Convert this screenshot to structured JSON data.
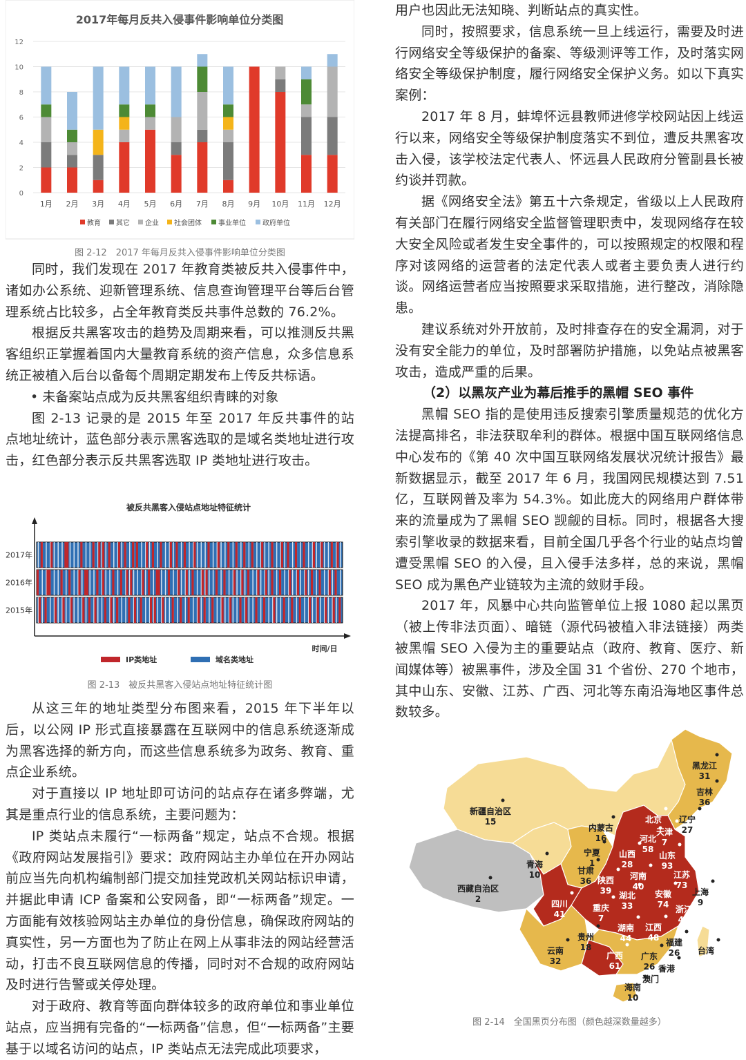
{
  "chart1": {
    "title": "2017年每月反共入侵事件影响单位分类图",
    "caption": "图 2-12　2017 年每月反共入侵事件影响单位分类图",
    "chart_data": {
      "type": "bar",
      "stacked": true,
      "title": "2017年每月反共入侵事件影响单位分类图",
      "categories": [
        "1月",
        "2月",
        "3月",
        "4月",
        "5月",
        "6月",
        "7月",
        "8月",
        "9月",
        "10月",
        "11月",
        "12月"
      ],
      "ylim": [
        0,
        12
      ],
      "yticks": [
        0,
        2,
        4,
        6,
        8,
        10,
        12
      ],
      "legend_position": "bottom",
      "series": [
        {
          "name": "教育",
          "color": "#e03a2a",
          "values": [
            2,
            2,
            1,
            4,
            5,
            3,
            4,
            1,
            10,
            8,
            3,
            3
          ]
        },
        {
          "name": "其它",
          "color": "#7b7b7b",
          "values": [
            2,
            1,
            2,
            0,
            0,
            1,
            1,
            3,
            0,
            1,
            3,
            3
          ]
        },
        {
          "name": "企业",
          "color": "#b3b3b3",
          "values": [
            2,
            1,
            0,
            1,
            1,
            2,
            3,
            1,
            0,
            1,
            1,
            4
          ]
        },
        {
          "name": "社会团体",
          "color": "#f4b41a",
          "values": [
            0,
            0,
            2,
            1,
            0,
            0,
            0,
            1,
            0,
            0,
            0,
            0
          ]
        },
        {
          "name": "事业单位",
          "color": "#4d8a35",
          "values": [
            1,
            1,
            0,
            1,
            1,
            0,
            2,
            1,
            0,
            0,
            2,
            0
          ]
        },
        {
          "name": "政府单位",
          "color": "#9bbfe0",
          "values": [
            3,
            3,
            5,
            3,
            3,
            4,
            1,
            3,
            0,
            0,
            1,
            1
          ]
        }
      ]
    }
  },
  "left_paragraphs_a": [
    "同时，我们发现在 2017 年教育类被反共入侵事件中，诸如办公系统、迎新管理系统、信息查询管理平台等后台管理系统占比较多，占全年教育类反共事件总数的 76.2%。",
    "根据反共黑客攻击的趋势及周期来看，可以推测反共黑客组织正掌握着国内大量教育系统的资产信息，众多信息系统正被植入后台以备每个周期定期发布上传反共标语。"
  ],
  "bullet1": "• 未备案站点成为反共黑客组织青睐的对象",
  "left_paragraphs_b": [
    "图 2-13 记录的是 2015 年至 2017 年反共事件的站点地址统计，蓝色部分表示黑客选取的是域名类地址进行攻击，红色部分表示反共黑客选取 IP 类地址进行攻击。"
  ],
  "chart2": {
    "title": "被反共黑客入侵站点地址特征统计",
    "caption": "图 2-13　被反共黑客入侵站点地址特征统计图",
    "xlabel": "时间/日",
    "rows": [
      "2017年",
      "2016年",
      "2015年"
    ],
    "legend": [
      {
        "label": "IP类地址",
        "color": "#c0262b"
      },
      {
        "label": "域名类地址",
        "color": "#2f6fb3"
      }
    ],
    "chart_data": {
      "type": "heatmap",
      "title": "被反共黑客入侵站点地址特征统计",
      "xlabel": "时间/日",
      "rows": [
        "2017年",
        "2016年",
        "2015年"
      ],
      "red_positions": [
        [
          2,
          7,
          14,
          15,
          22,
          28,
          31,
          33,
          36,
          41,
          44,
          48,
          50,
          55,
          58,
          62,
          67,
          70,
          74,
          79,
          86,
          91,
          96,
          100,
          104,
          108,
          113,
          118,
          123,
          126,
          130,
          134,
          139,
          143,
          148,
          151
        ],
        [
          0,
          5,
          6,
          12,
          16,
          21,
          24,
          25,
          30,
          33,
          38,
          42,
          45,
          47,
          53,
          56,
          60,
          61,
          66,
          71,
          75,
          78,
          83,
          85,
          90,
          94,
          99,
          103,
          106,
          111,
          115,
          118,
          122,
          127,
          131,
          135,
          138,
          142,
          147,
          150
        ],
        [
          1,
          4,
          9,
          13,
          17,
          23,
          26,
          29,
          34,
          37,
          40,
          46,
          49,
          52,
          57,
          59,
          63,
          68,
          72,
          76,
          81,
          84,
          88,
          93,
          97,
          102,
          105,
          110,
          114,
          119,
          124,
          128,
          132,
          137,
          141,
          145,
          149,
          152
        ]
      ],
      "columns": 154
    }
  },
  "left_paragraphs_c": [
    "从这三年的地址类型分布图来看，2015 年下半年以后，以公网 IP 形式直接暴露在互联网中的信息系统逐渐成为黑客选择的新方向，而这些信息系统多为政务、教育、重点企业系统。",
    "对于直接以 IP 地址即可访问的站点存在诸多弊端，尤其是重点行业的信息系统，主要问题为：",
    "IP 类站点未履行“一标两备”规定，站点不合规。根据《政府网站发展指引》要求：政府网站主办单位在开办网站前应当先向机构编制部门提交加挂党政机关网站标识申请，并据此申请 ICP 备案和公安网备，即“一标两备”规定。一方面能有效核验网站主办单位的身份信息，确保政府网站的真实性，另一方面也为了防止在网上从事非法的网站经营活动，打击不良互联网信息的传播，同时对不合规的政府网站及时进行告警或关停处理。",
    "对于政府、教育等面向群体较多的政府单位和事业单位站点，应当拥有完备的“一标两备”信息，但“一标两备”主要基于以域名访问的站点，IP 类站点无法完成此项要求，"
  ],
  "right_first_line": "用户也因此无法知晓、判断站点的真实性。",
  "right_paragraphs_a": [
    "同时，按照要求，信息系统一旦上线运行，需要及时进行网络安全等级保护的备案、等级测评等工作，及时落实网络安全等级保护制度，履行网络安全保护义务。如以下真实案例：",
    "2017 年 8 月，蚌埠怀远县教师进修学校网站因上线运行以来，网络安全等级保护制度落实不到位，遭反共黑客攻击入侵，该学校法定代表人、怀远县人民政府分管副县长被约谈并罚款。",
    "据《网络安全法》第五十六条规定，省级以上人民政府有关部门在履行网络安全监督管理职责中，发现网络存在较大安全风险或者发生安全事件的，可以按照规定的权限和程序对该网络的运营者的法定代表人或者主要负责人进行约谈。网络运营者应当按照要求采取措施，进行整改，消除隐患。",
    "建议系统对外开放前，及时排查存在的安全漏洞，对于没有安全能力的单位，及时部署防护措施，以免站点被黑客攻击，造成严重的后果。"
  ],
  "subheading": "（2）以黑灰产业为幕后推手的黑帽 SEO 事件",
  "right_paragraphs_b": [
    "黑帽 SEO 指的是使用违反搜索引擎质量规范的优化方法提高排名，非法获取牟利的群体。根据中国互联网络信息中心发布的《第 40 次中国互联网络发展状况统计报告》最新数据显示，截至 2017 年 6 月，我国网民规模达到 7.51 亿，互联网普及率为 54.3%。如此庞大的网络用户群体带来的流量成为了黑帽 SEO 觊觎的目标。同时，根据各大搜索引擎收录的数据来看，目前全国几乎各个行业的站点均曾遭受黑帽 SEO 的入侵，且入侵手法多样，总的来说，黑帽 SEO 成为黑色产业链较为主流的敛财手段。",
    "2017 年，风暴中心共向监管单位上报 1080 起以黑页（被上传非法页面）、暗链（源代码被植入非法链接）两类被黑帽 SEO 入侵为主的重要站点（政府、教育、医疗、新闻媒体等）被黑事件，涉及全国 31 个省份、270 个地市，其中山东、安徽、江苏、广西、河北等东南沿海地区事件总数较多。"
  ],
  "map": {
    "caption": "图 2-14　全国黑页分布图（颜色越深数量越多）",
    "colors": {
      "light": "#f6dc96",
      "mid": "#e6b84c",
      "dark": "#b42b1d",
      "gray": "#bfbfbf"
    },
    "regions": [
      {
        "name": "黑龙江",
        "value": "31"
      },
      {
        "name": "吉林",
        "value": "36"
      },
      {
        "name": "辽宁",
        "value": "27"
      },
      {
        "name": "新疆自治区",
        "value": "15"
      },
      {
        "name": "内蒙古",
        "value": "16"
      },
      {
        "name": "北京",
        "value": ""
      },
      {
        "name": "天津",
        "value": "7"
      },
      {
        "name": "河北",
        "value": "58"
      },
      {
        "name": "山西",
        "value": "28"
      },
      {
        "name": "山东",
        "value": "93"
      },
      {
        "name": "宁夏",
        "value": "1"
      },
      {
        "name": "青海",
        "value": "10"
      },
      {
        "name": "甘肃",
        "value": "36"
      },
      {
        "name": "陕西",
        "value": "39"
      },
      {
        "name": "河南",
        "value": "40"
      },
      {
        "name": "江苏",
        "value": "73"
      },
      {
        "name": "西藏自治区",
        "value": "2"
      },
      {
        "name": "安徽",
        "value": "74"
      },
      {
        "name": "上海",
        "value": "9"
      },
      {
        "name": "湖北",
        "value": "33"
      },
      {
        "name": "四川",
        "value": "41"
      },
      {
        "name": "重庆",
        "value": "7"
      },
      {
        "name": "浙江",
        "value": "48"
      },
      {
        "name": "湖南",
        "value": "44"
      },
      {
        "name": "江西",
        "value": "48"
      },
      {
        "name": "贵州",
        "value": "18"
      },
      {
        "name": "福建",
        "value": "26"
      },
      {
        "name": "云南",
        "value": "32"
      },
      {
        "name": "广西",
        "value": "61"
      },
      {
        "name": "广东",
        "value": "26"
      },
      {
        "name": "台湾",
        "value": ""
      },
      {
        "name": "香港",
        "value": ""
      },
      {
        "name": "澳门",
        "value": ""
      },
      {
        "name": "海南",
        "value": "10"
      }
    ]
  }
}
